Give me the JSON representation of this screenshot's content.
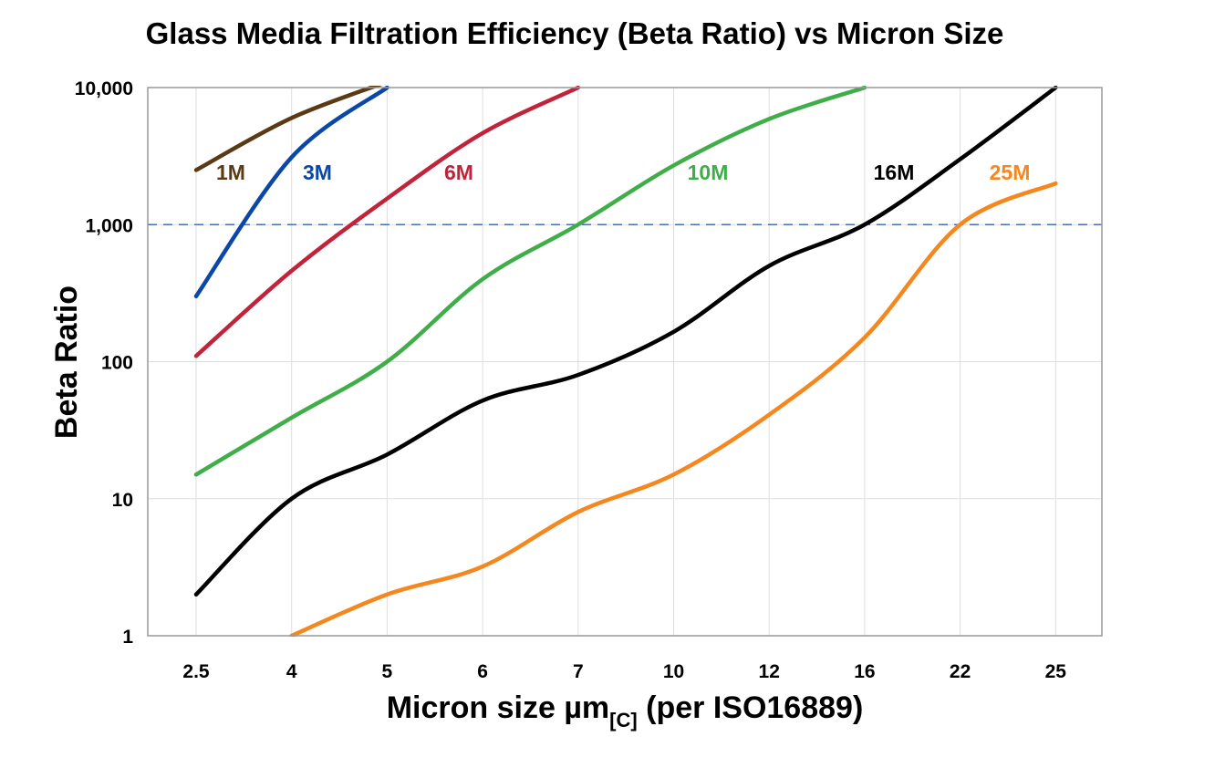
{
  "chart_data": {
    "type": "line",
    "title": "Glass Media Filtration Efficiency (Beta Ratio) vs Micron Size",
    "xlabel": "Micron size µm",
    "xlabel_subscript": "[C]",
    "xlabel_suffix": " (per ISO16889)",
    "ylabel": "Beta Ratio",
    "yscale": "log",
    "ylim": [
      1,
      10000
    ],
    "yticks": [
      "1",
      "10",
      "100",
      "1,000",
      "10,000"
    ],
    "categories": [
      "2.5",
      "4",
      "5",
      "6",
      "7",
      "10",
      "12",
      "16",
      "22",
      "25"
    ],
    "grid": true,
    "reference_line": {
      "y": 1000,
      "style": "dashed",
      "color": "#4a6fb5"
    },
    "series": [
      {
        "name": "1M",
        "color": "#5a3a14",
        "values": [
          2500,
          6000,
          11000,
          null,
          null,
          null,
          null,
          null,
          null,
          null
        ]
      },
      {
        "name": "3M",
        "color": "#0a47a8",
        "values": [
          300,
          3100,
          10000,
          null,
          null,
          null,
          null,
          null,
          null,
          null
        ]
      },
      {
        "name": "6M",
        "color": "#c0233a",
        "values": [
          110,
          460,
          1550,
          4650,
          10000,
          null,
          null,
          null,
          null,
          null
        ]
      },
      {
        "name": "10M",
        "color": "#3fae49",
        "values": [
          15,
          39,
          100,
          400,
          1000,
          2700,
          5900,
          10000,
          null,
          null
        ]
      },
      {
        "name": "16M",
        "color": "#000000",
        "values": [
          2,
          10,
          21,
          52,
          80,
          165,
          500,
          1000,
          3000,
          10000
        ]
      },
      {
        "name": "25M",
        "color": "#f5871f",
        "values": [
          null,
          1,
          2,
          3.2,
          8,
          15,
          41,
          150,
          1000,
          2000
        ]
      }
    ]
  }
}
